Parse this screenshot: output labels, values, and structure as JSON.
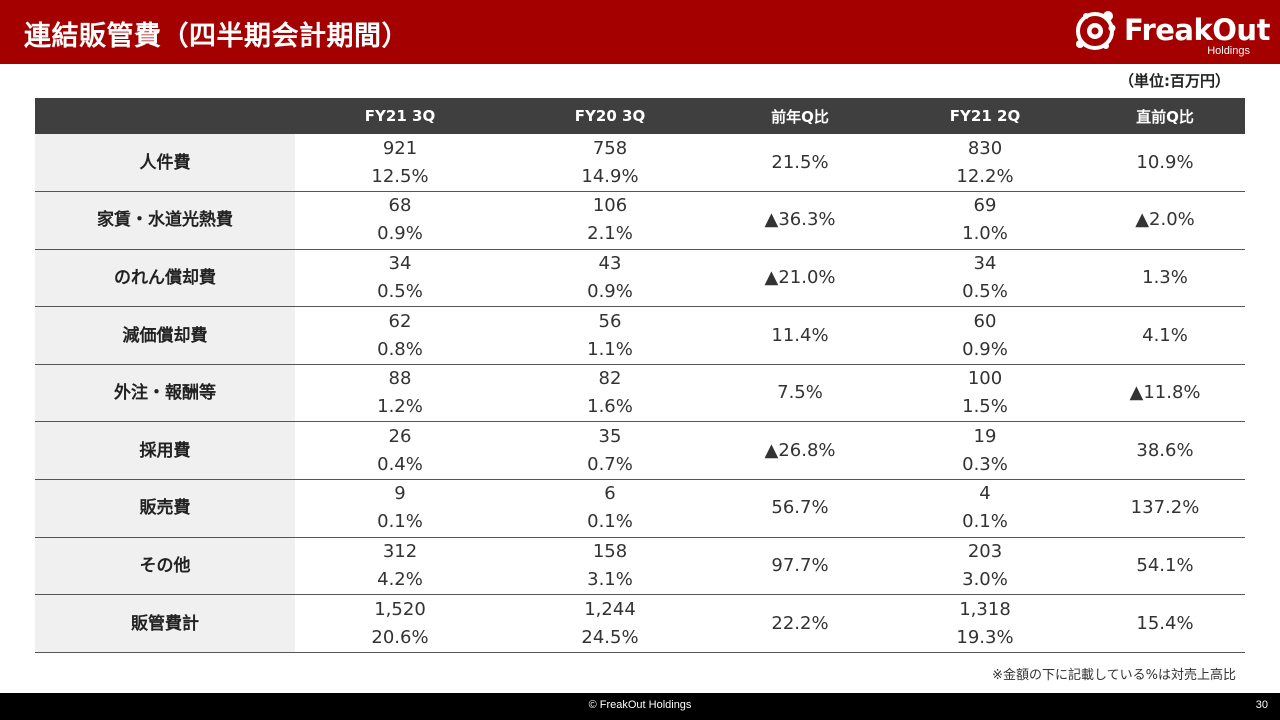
{
  "header": {
    "title": "連結販管費（四半期会計期間）",
    "logo_text": "FreakOut",
    "logo_subtext": "Holdings",
    "bar_color": "#a50000"
  },
  "unit_note": "（単位:百万円）",
  "table": {
    "columns": [
      "",
      "FY21 3Q",
      "FY20 3Q",
      "前年Q比",
      "FY21 2Q",
      "直前Q比"
    ],
    "rows": [
      {
        "label": "人件費",
        "fy21_3q": {
          "value": "921",
          "pct": "12.5%"
        },
        "fy20_3q": {
          "value": "758",
          "pct": "14.9%"
        },
        "yoy": "21.5%",
        "fy21_2q": {
          "value": "830",
          "pct": "12.2%"
        },
        "qoq": "10.9%"
      },
      {
        "label": "家賃・水道光熱費",
        "fy21_3q": {
          "value": "68",
          "pct": "0.9%"
        },
        "fy20_3q": {
          "value": "106",
          "pct": "2.1%"
        },
        "yoy": "▲36.3%",
        "fy21_2q": {
          "value": "69",
          "pct": "1.0%"
        },
        "qoq": "▲2.0%"
      },
      {
        "label": "のれん償却費",
        "fy21_3q": {
          "value": "34",
          "pct": "0.5%"
        },
        "fy20_3q": {
          "value": "43",
          "pct": "0.9%"
        },
        "yoy": "▲21.0%",
        "fy21_2q": {
          "value": "34",
          "pct": "0.5%"
        },
        "qoq": "1.3%"
      },
      {
        "label": "減価償却費",
        "fy21_3q": {
          "value": "62",
          "pct": "0.8%"
        },
        "fy20_3q": {
          "value": "56",
          "pct": "1.1%"
        },
        "yoy": "11.4%",
        "fy21_2q": {
          "value": "60",
          "pct": "0.9%"
        },
        "qoq": "4.1%"
      },
      {
        "label": "外注・報酬等",
        "fy21_3q": {
          "value": "88",
          "pct": "1.2%"
        },
        "fy20_3q": {
          "value": "82",
          "pct": "1.6%"
        },
        "yoy": "7.5%",
        "fy21_2q": {
          "value": "100",
          "pct": "1.5%"
        },
        "qoq": "▲11.8%"
      },
      {
        "label": "採用費",
        "fy21_3q": {
          "value": "26",
          "pct": "0.4%"
        },
        "fy20_3q": {
          "value": "35",
          "pct": "0.7%"
        },
        "yoy": "▲26.8%",
        "fy21_2q": {
          "value": "19",
          "pct": "0.3%"
        },
        "qoq": "38.6%"
      },
      {
        "label": "販売費",
        "fy21_3q": {
          "value": "9",
          "pct": "0.1%"
        },
        "fy20_3q": {
          "value": "6",
          "pct": "0.1%"
        },
        "yoy": "56.7%",
        "fy21_2q": {
          "value": "4",
          "pct": "0.1%"
        },
        "qoq": "137.2%"
      },
      {
        "label": "その他",
        "fy21_3q": {
          "value": "312",
          "pct": "4.2%"
        },
        "fy20_3q": {
          "value": "158",
          "pct": "3.1%"
        },
        "yoy": "97.7%",
        "fy21_2q": {
          "value": "203",
          "pct": "3.0%"
        },
        "qoq": "54.1%"
      },
      {
        "label": "販管費計",
        "fy21_3q": {
          "value": "1,520",
          "pct": "20.6%"
        },
        "fy20_3q": {
          "value": "1,244",
          "pct": "24.5%"
        },
        "yoy": "22.2%",
        "fy21_2q": {
          "value": "1,318",
          "pct": "19.3%"
        },
        "qoq": "15.4%"
      }
    ]
  },
  "footnote": "※金額の下に記載している%は対売上高比",
  "footer": {
    "copyright": "© FreakOut Holdings",
    "page_number": "30"
  }
}
